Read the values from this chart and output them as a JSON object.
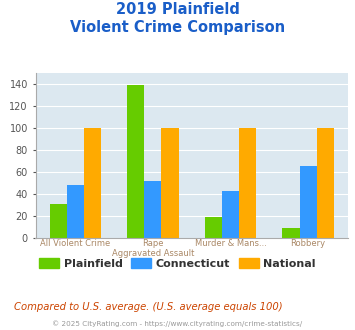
{
  "title_line1": "2019 Plainfield",
  "title_line2": "Violent Crime Comparison",
  "cat_line1": [
    "All Violent Crime",
    "Rape",
    "Murder & Mans...",
    "Robbery"
  ],
  "cat_line2": [
    "",
    "Aggravated Assault",
    "",
    ""
  ],
  "plainfield": [
    31,
    139,
    19,
    9
  ],
  "connecticut": [
    48,
    51,
    42,
    65
  ],
  "national": [
    100,
    100,
    100,
    100
  ],
  "color_plainfield": "#66cc00",
  "color_connecticut": "#3399ff",
  "color_national": "#ffaa00",
  "ylim": [
    0,
    150
  ],
  "yticks": [
    0,
    20,
    40,
    60,
    80,
    100,
    120,
    140
  ],
  "bg_color": "#dce8f0",
  "title_color": "#1a5ec8",
  "xlabel_color1": "#aa8866",
  "xlabel_color2": "#aa8866",
  "note_text": "Compared to U.S. average. (U.S. average equals 100)",
  "note_color": "#cc4400",
  "footer_text": "© 2025 CityRating.com - https://www.cityrating.com/crime-statistics/",
  "footer_color": "#999999",
  "bar_width": 0.22,
  "legend_labels": [
    "Plainfield",
    "Connecticut",
    "National"
  ]
}
